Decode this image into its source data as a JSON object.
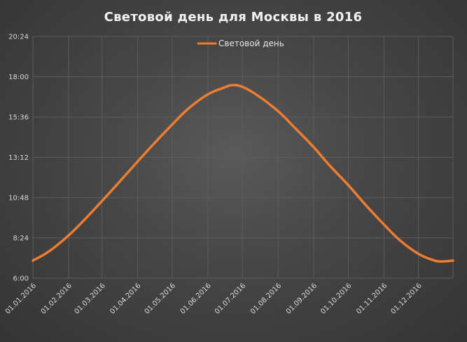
{
  "chart_data": {
    "type": "line",
    "title": "Световой день для Москвы в 2016",
    "legend": {
      "position": "top",
      "entries": [
        "Световой день"
      ]
    },
    "y_ticks": [
      "6:00",
      "8:24",
      "10:48",
      "13:12",
      "15:36",
      "18:00",
      "20:24"
    ],
    "y_range_hours": [
      6.0,
      20.4
    ],
    "y_tick_step_hours": 2.4,
    "x_tick_labels": [
      "01.01.2016",
      "01.02.2016",
      "01.03.2016",
      "01.04.2016",
      "01.05.2016",
      "01.06.2016",
      "01.07.2016",
      "01.08.2016",
      "01.09.2016",
      "01.10.2016",
      "01.11.2016",
      "01.12.2016"
    ],
    "x_range": [
      "01.01.2016",
      "31.12.2016"
    ],
    "grid": true,
    "series": [
      {
        "name": "Световой день",
        "color": "#ed7d31",
        "x": [
          "01.01.2016",
          "15.01.2016",
          "01.02.2016",
          "15.02.2016",
          "01.03.2016",
          "15.03.2016",
          "01.04.2016",
          "15.04.2016",
          "01.05.2016",
          "15.05.2016",
          "01.06.2016",
          "15.06.2016",
          "22.06.2016",
          "01.07.2016",
          "15.07.2016",
          "01.08.2016",
          "15.08.2016",
          "01.09.2016",
          "15.09.2016",
          "01.10.2016",
          "15.10.2016",
          "01.11.2016",
          "15.11.2016",
          "01.12.2016",
          "15.12.2016",
          "22.12.2016",
          "31.12.2016"
        ],
        "y_hours": [
          7.05,
          7.6,
          8.55,
          9.5,
          10.6,
          11.65,
          12.95,
          14.0,
          15.15,
          16.1,
          16.95,
          17.35,
          17.5,
          17.4,
          16.85,
          15.95,
          15.0,
          13.8,
          12.7,
          11.55,
          10.45,
          9.2,
          8.25,
          7.45,
          7.05,
          7.0,
          7.05
        ]
      }
    ]
  },
  "colors": {
    "line": "#ed7d31",
    "grid": "#5c5c5c",
    "text": "#d9d9d9"
  }
}
